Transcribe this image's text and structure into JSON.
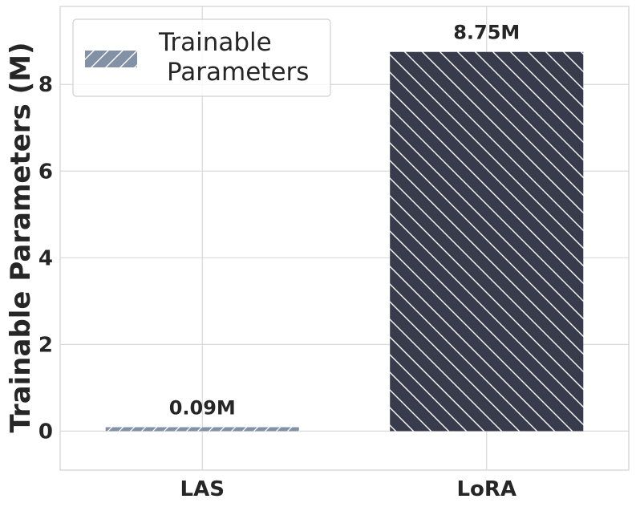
{
  "chart_data": {
    "type": "bar",
    "categories": [
      "LAS",
      "LoRA"
    ],
    "values": [
      0.09,
      8.75
    ],
    "data_labels": [
      "0.09M",
      "8.75M"
    ],
    "ylabel": "Trainable Parameters (M)",
    "xlabel": "",
    "ylim": [
      -0.9,
      9.8
    ],
    "yticks": [
      0,
      2,
      4,
      6,
      8
    ],
    "ytick_labels": [
      "0",
      "2",
      "4",
      "6",
      "8"
    ],
    "grid": true,
    "legend": {
      "placement": "top-left",
      "entries": [
        {
          "line1": "Trainable",
          "line2": "Parameters"
        }
      ]
    },
    "colors": {
      "LAS": "#8391a6",
      "LoRA": "#383b4b",
      "hatch": "#ffffff",
      "grid": "#d9d9d9",
      "frame": "#d0d0d0"
    }
  }
}
